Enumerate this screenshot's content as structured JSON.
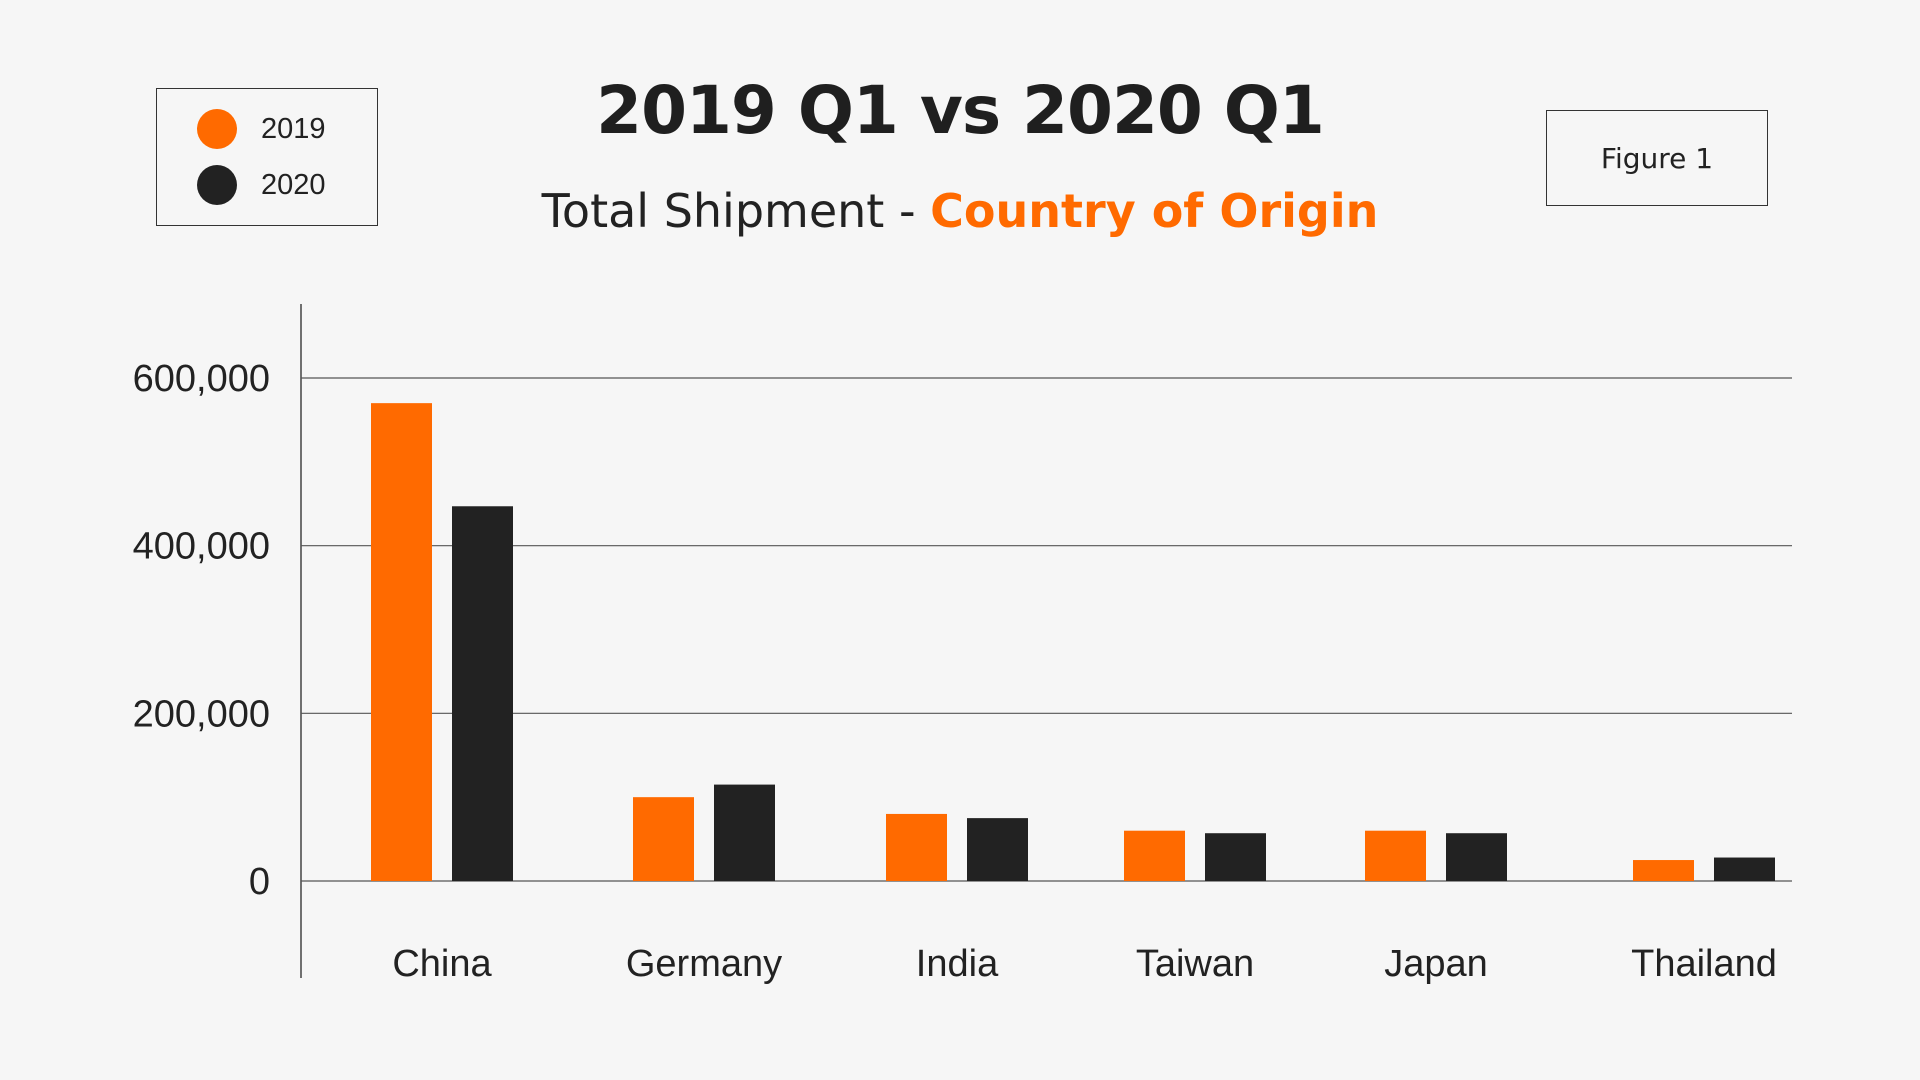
{
  "header": {
    "title": "2019 Q1 vs 2020 Q1",
    "subtitle_prefix": "Total Shipment - ",
    "subtitle_accent": "Country of Origin",
    "figure_label": "Figure 1"
  },
  "legend": {
    "items": [
      {
        "label": "2019",
        "color": "#ff6a00"
      },
      {
        "label": "2020",
        "color": "#222222"
      }
    ]
  },
  "chart_data": {
    "type": "bar",
    "title": "2019 Q1 vs 2020 Q1",
    "subtitle": "Total Shipment - Country of Origin",
    "categories": [
      "China",
      "Germany",
      "India",
      "Taiwan",
      "Japan",
      "Thailand"
    ],
    "series": [
      {
        "name": "2019",
        "color": "#ff6a00",
        "values": [
          570000,
          100000,
          80000,
          60000,
          60000,
          25000
        ]
      },
      {
        "name": "2020",
        "color": "#222222",
        "values": [
          447000,
          115000,
          75000,
          57000,
          57000,
          28000
        ]
      }
    ],
    "y_ticks": [
      0,
      200000,
      400000,
      600000
    ],
    "y_tick_labels": [
      "0",
      "200,000",
      "400,000",
      "600,000"
    ],
    "ylim": [
      0,
      600000
    ],
    "grid": true,
    "legend_position": "top-left",
    "xlabel": "",
    "ylabel": ""
  }
}
